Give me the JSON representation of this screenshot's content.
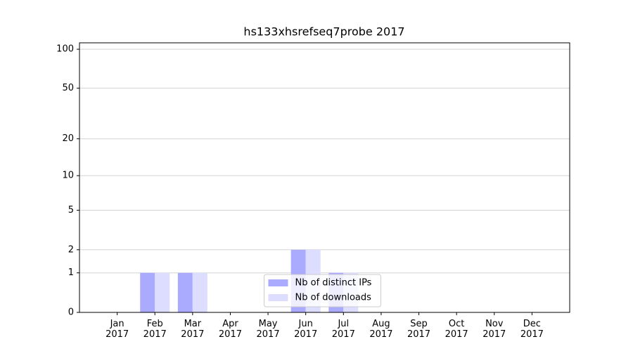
{
  "chart_data": {
    "type": "bar",
    "title": "hs133xhsrefseq7probe 2017",
    "categories": [
      "Jan\n2017",
      "Feb\n2017",
      "Mar\n2017",
      "Apr\n2017",
      "May\n2017",
      "Jun\n2017",
      "Jul\n2017",
      "Aug\n2017",
      "Sep\n2017",
      "Oct\n2017",
      "Nov\n2017",
      "Dec\n2017"
    ],
    "series": [
      {
        "name": "Nb of distinct IPs",
        "color": "#aaaaff",
        "values": [
          0,
          1,
          1,
          0,
          0,
          2,
          1,
          0,
          0,
          0,
          0,
          0
        ]
      },
      {
        "name": "Nb of downloads",
        "color": "#ddddff",
        "values": [
          0,
          1,
          1,
          0,
          0,
          2,
          1,
          0,
          0,
          0,
          0,
          0
        ]
      }
    ],
    "yscale": "log1p",
    "ylim": [
      0,
      112
    ],
    "yticks": [
      0,
      1,
      2,
      5,
      10,
      20,
      50,
      100
    ],
    "grid": true,
    "legend": "lower center"
  }
}
